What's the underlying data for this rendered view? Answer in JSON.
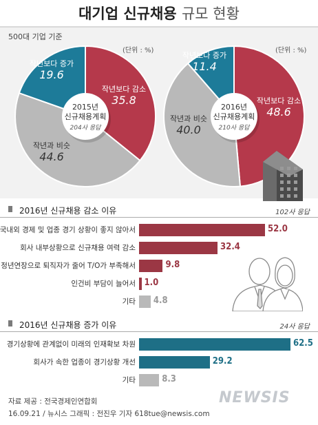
{
  "header": {
    "title_main": "대기업 신규채용",
    "title_sub": "규모 현황",
    "basis": "500대 기업 기준"
  },
  "pies": {
    "unit": "(단위 : %)",
    "colors": {
      "decrease": "#b5394b",
      "similar": "#b9b9b9",
      "increase": "#1d7b99"
    },
    "pie_2015": {
      "center_year": "2015년",
      "center_plan": "신규채용계획",
      "center_resp": "204사 응답",
      "slices": [
        {
          "label": "작년보다 감소",
          "value": "35.8"
        },
        {
          "label": "작년과 비슷",
          "value": "44.6"
        },
        {
          "label": "작년보다 증가",
          "value": "19.6"
        }
      ]
    },
    "pie_2016": {
      "center_year": "2016년",
      "center_plan": "신규채용계획",
      "center_resp": "210사 응답",
      "slices": [
        {
          "label": "작년보다 감소",
          "value": "48.6"
        },
        {
          "label": "작년과 비슷",
          "value": "40.0"
        },
        {
          "label": "작년보다 증가",
          "value": "11.4"
        }
      ]
    }
  },
  "decrease_section": {
    "title": "2016년 신규채용 감소 이유",
    "responses": "102사 응답",
    "color": "#9b3744",
    "other_color": "#b9b9b9",
    "items": [
      {
        "label": "국내외 경제 및 업종 경기 상황이 좋지 않아서",
        "value": "52.0"
      },
      {
        "label": "회사 내부상황으로 신규채용 여력 감소",
        "value": "32.4"
      },
      {
        "label": "정년연장으로 퇴직자가 줄어 T/O가 부족해서",
        "value": "9.8"
      },
      {
        "label": "인건비 부담이 늘어서",
        "value": "1.0"
      },
      {
        "label": "기타",
        "value": "4.8"
      }
    ]
  },
  "increase_section": {
    "title": "2016년 신규채용 증가 이유",
    "responses": "24사 응답",
    "color": "#1e6f86",
    "other_color": "#b9b9b9",
    "items": [
      {
        "label": "경기상황에 관계없이 미래의 인재확보 차원",
        "value": "62.5"
      },
      {
        "label": "회사가 속한 업종이 경기상황 개선",
        "value": "29.2"
      },
      {
        "label": "기타",
        "value": "8.3"
      }
    ]
  },
  "footer": {
    "source": "자료 제공 : 전국경제인연합회",
    "credit": "16.09.21 / 뉴시스 그래픽 : 전진우 기자 618tue@newsis.com",
    "logo": "NEWSIS"
  },
  "chart_data": [
    {
      "type": "pie",
      "title": "2015년 신규채용계획",
      "categories": [
        "작년보다 감소",
        "작년과 비슷",
        "작년보다 증가"
      ],
      "values": [
        35.8,
        44.6,
        19.6
      ],
      "unit": "%"
    },
    {
      "type": "pie",
      "title": "2016년 신규채용계획",
      "categories": [
        "작년보다 감소",
        "작년과 비슷",
        "작년보다 증가"
      ],
      "values": [
        48.6,
        40.0,
        11.4
      ],
      "unit": "%"
    },
    {
      "type": "bar",
      "title": "2016년 신규채용 감소 이유",
      "categories": [
        "국내외 경제 및 업종 경기 상황이 좋지 않아서",
        "회사 내부상황으로 신규채용 여력 감소",
        "정년연장으로 퇴직자가 줄어 T/O가 부족해서",
        "인건비 부담이 늘어서",
        "기타"
      ],
      "values": [
        52.0,
        32.4,
        9.8,
        1.0,
        4.8
      ]
    },
    {
      "type": "bar",
      "title": "2016년 신규채용 증가 이유",
      "categories": [
        "경기상황에 관계없이 미래의 인재확보 차원",
        "회사가 속한 업종이 경기상황 개선",
        "기타"
      ],
      "values": [
        62.5,
        29.2,
        8.3
      ]
    }
  ]
}
